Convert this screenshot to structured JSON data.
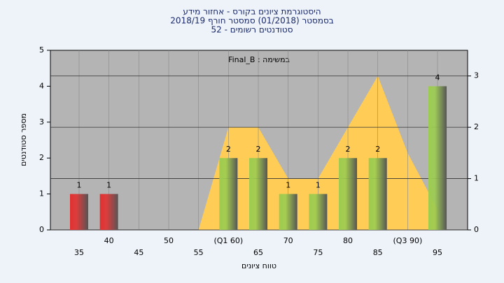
{
  "chart_data": {
    "type": "bar",
    "title": [
      "היסטוגרמת ציונים בקורס - אחזור מידע",
      "בסמסטר  (01/2018)  סמסטר חורף 2018/19",
      "סטודנטים רשומים - 52"
    ],
    "annotation": "במשימה : Final_B",
    "xlabel": "טווח ציונים",
    "ylabel": "מספר סטודנטים",
    "categories": [
      "35",
      "40",
      "45",
      "50",
      "55",
      "(Q1 60)",
      "65",
      "70",
      "75",
      "80",
      "85",
      "(Q3 90)",
      "95"
    ],
    "values": [
      1,
      1,
      0,
      0,
      0,
      2,
      2,
      1,
      1,
      2,
      2,
      0,
      4
    ],
    "colors": [
      "#e03030",
      "#e03030",
      "#9ccc50",
      "#9ccc50",
      "#9ccc50",
      "#9ccc50",
      "#9ccc50",
      "#9ccc50",
      "#9ccc50",
      "#9ccc50",
      "#9ccc50",
      "#9ccc50",
      "#9ccc50"
    ],
    "ylim": [
      0,
      5
    ],
    "yticks": [
      0,
      1,
      2,
      3,
      4,
      5
    ],
    "y2lim": [
      0,
      3.5
    ],
    "y2ticks": [
      0,
      1,
      2,
      3
    ],
    "area": {
      "axis": "y2",
      "color": "#ffcc55",
      "values": [
        null,
        null,
        null,
        null,
        0,
        2,
        2,
        1,
        1,
        2,
        3,
        1.5,
        0.4
      ]
    },
    "grid": true
  }
}
